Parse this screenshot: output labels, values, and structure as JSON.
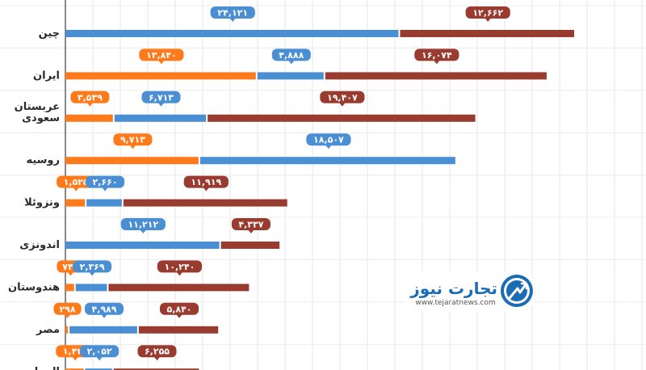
{
  "chart_data": {
    "type": "bar",
    "stacked": true,
    "orientation": "horizontal",
    "grid": true,
    "series_colors": [
      "#ff7a1a",
      "#4a8fd4",
      "#9a3b30"
    ],
    "categories": [
      {
        "label": "چین",
        "values": [
          0,
          24121,
          12662
        ],
        "display": [
          "",
          "۲۴,۱۲۱",
          "۱۲,۶۶۲"
        ]
      },
      {
        "label": "ایران",
        "values": [
          13840,
          4888,
          16074
        ],
        "display": [
          "۱۳,۸۴۰",
          "۴,۸۸۸",
          "۱۶,۰۷۴"
        ]
      },
      {
        "label": "عربستان سعودی",
        "values": [
          3539,
          6713,
          19407
        ],
        "display": [
          "۳,۵۳۹",
          "۶,۷۱۳",
          "۱۹,۴۰۷"
        ]
      },
      {
        "label": "روسیه",
        "values": [
          9713,
          18507,
          0
        ],
        "display": [
          "۹,۷۱۳",
          "۱۸,۵۰۷",
          ""
        ]
      },
      {
        "label": "ونزوئلا",
        "values": [
          1525,
          2660,
          11919
        ],
        "display": [
          "۱,۵۲۵",
          "۲,۶۶۰",
          "۱۱,۹۱۹"
        ]
      },
      {
        "label": "اندونزی",
        "values": [
          0,
          11212,
          4337
        ],
        "display": [
          "",
          "۱۱,۲۱۲",
          "۴,۳۳۷"
        ]
      },
      {
        "label": "هندوستان",
        "values": [
          742,
          2369,
          10240
        ],
        "display": [
          "۷۴۲",
          "۲,۳۶۹",
          "۱۰,۲۴۰"
        ]
      },
      {
        "label": "مصر",
        "values": [
          298,
          4989,
          5840
        ],
        "display": [
          "۲۹۸",
          "۴,۹۸۹",
          "۵,۸۴۰"
        ]
      },
      {
        "label": "الجزایر",
        "values": [
          1426,
          2052,
          6255
        ],
        "display": [
          "۱,۴۲۶",
          "۲,۰۵۲",
          "۶,۲۵۵"
        ]
      }
    ]
  },
  "logo": {
    "name": "تجارت نیوز",
    "url": "www.tejaratnews.com"
  }
}
